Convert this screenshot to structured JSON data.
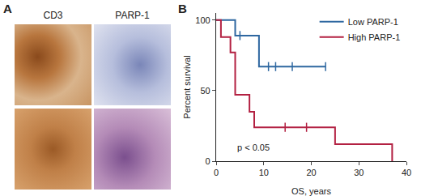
{
  "panel_a": {
    "label": "A",
    "columns": [
      "CD3",
      "PARP-1"
    ]
  },
  "panel_b_label": "B",
  "chart_data": {
    "type": "step",
    "x_label": "OS, years",
    "y_label": "Percent survival",
    "xlim": [
      0,
      40
    ],
    "xticks": [
      0,
      10,
      20,
      30,
      40
    ],
    "ylim": [
      0,
      105
    ],
    "yticks": [
      0,
      50,
      100
    ],
    "legend": "top-right",
    "annotation": "p < 0.05",
    "series": [
      {
        "name": "Low PARP-1",
        "color": "#2e67a0",
        "x": [
          0,
          4,
          9,
          23
        ],
        "values": [
          100,
          89,
          67,
          67
        ],
        "censored_x": [
          5,
          11,
          12.5,
          16,
          23
        ],
        "censored_y": [
          89,
          67,
          67,
          67,
          67
        ]
      },
      {
        "name": "High PARP-1",
        "color": "#b32142",
        "x": [
          0,
          1,
          3,
          4,
          7,
          8,
          25,
          37
        ],
        "values": [
          100,
          88,
          77,
          47,
          35,
          24,
          12,
          0
        ],
        "censored_x": [
          14.5,
          19
        ],
        "censored_y": [
          24,
          24
        ]
      }
    ]
  }
}
